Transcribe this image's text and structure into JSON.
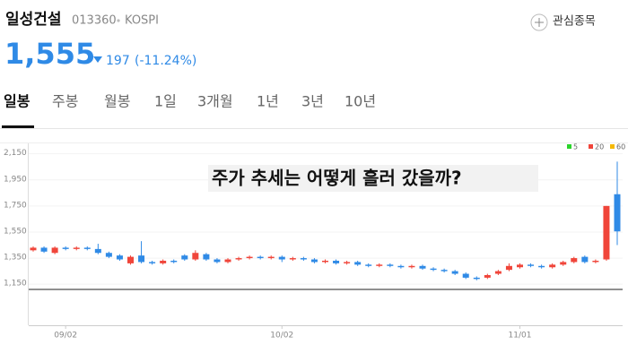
{
  "header": {
    "name": "일성건설",
    "code": "013360",
    "market": "KOSPI",
    "watch_button": "관심종목",
    "price": "1,555",
    "change": "197",
    "change_pct": "(-11.24%)"
  },
  "tabs": [
    "일봉",
    "주봉",
    "월봉",
    "1일",
    "3개월",
    "1년",
    "3년",
    "10년"
  ],
  "active_tab": 0,
  "overlay_text": "주가 추세는 어떻게 흘러 갔을까?",
  "chart_data": {
    "type": "candlestick",
    "categories": [
      null,
      null,
      null,
      "09/02",
      null,
      null,
      null,
      null,
      null,
      null,
      null,
      null,
      null,
      null,
      null,
      null,
      null,
      null,
      null,
      null,
      null,
      null,
      null,
      "10/02",
      null,
      null,
      null,
      null,
      null,
      null,
      null,
      null,
      null,
      null,
      null,
      null,
      null,
      null,
      null,
      null,
      null,
      null,
      null,
      null,
      null,
      "11/01",
      null,
      null,
      null,
      null,
      null,
      null,
      null,
      null,
      null
    ],
    "open": [
      1410,
      1430,
      1390,
      1430,
      1420,
      1430,
      1420,
      1390,
      1370,
      1310,
      1370,
      1320,
      1310,
      1330,
      1370,
      1340,
      1380,
      1340,
      1320,
      1340,
      1350,
      1360,
      1350,
      1360,
      1340,
      1350,
      1340,
      1320,
      1330,
      1310,
      1320,
      1300,
      1290,
      1300,
      1290,
      1280,
      1290,
      1270,
      1260,
      1250,
      1230,
      1200,
      1200,
      1230,
      1260,
      1280,
      1300,
      1290,
      1280,
      1300,
      1320,
      1360,
      1320,
      1340,
      1840
    ],
    "close": [
      1430,
      1400,
      1430,
      1420,
      1430,
      1420,
      1390,
      1360,
      1340,
      1360,
      1320,
      1310,
      1330,
      1320,
      1340,
      1390,
      1340,
      1320,
      1340,
      1350,
      1360,
      1350,
      1360,
      1340,
      1350,
      1340,
      1320,
      1330,
      1310,
      1320,
      1300,
      1290,
      1300,
      1290,
      1280,
      1290,
      1270,
      1260,
      1250,
      1230,
      1200,
      1190,
      1220,
      1250,
      1290,
      1300,
      1290,
      1280,
      1300,
      1320,
      1350,
      1320,
      1330,
      1750,
      1555
    ],
    "high": [
      1440,
      1440,
      1440,
      1440,
      1440,
      1440,
      1460,
      1400,
      1380,
      1370,
      1480,
      1330,
      1340,
      1340,
      1380,
      1410,
      1390,
      1350,
      1350,
      1360,
      1370,
      1370,
      1370,
      1370,
      1360,
      1360,
      1350,
      1340,
      1340,
      1330,
      1330,
      1310,
      1310,
      1310,
      1300,
      1300,
      1300,
      1280,
      1270,
      1260,
      1240,
      1210,
      1230,
      1260,
      1310,
      1310,
      1310,
      1300,
      1310,
      1330,
      1360,
      1370,
      1340,
      1750,
      2090
    ],
    "low": [
      1400,
      1390,
      1380,
      1410,
      1410,
      1410,
      1380,
      1350,
      1330,
      1300,
      1310,
      1300,
      1300,
      1310,
      1330,
      1330,
      1330,
      1310,
      1310,
      1330,
      1340,
      1340,
      1340,
      1320,
      1330,
      1330,
      1310,
      1310,
      1300,
      1300,
      1290,
      1280,
      1280,
      1280,
      1270,
      1270,
      1260,
      1250,
      1240,
      1220,
      1190,
      1180,
      1190,
      1220,
      1250,
      1270,
      1280,
      1270,
      1270,
      1290,
      1310,
      1310,
      1310,
      1330,
      1450
    ],
    "up_color": "#f0453a",
    "down_color": "#2f8ae6",
    "ylim": [
      1110,
      2230
    ],
    "yticks": [
      {
        "value": 1150,
        "label": "1,150"
      },
      {
        "value": 1350,
        "label": "1,350"
      },
      {
        "value": 1550,
        "label": "1,550"
      },
      {
        "value": 1750,
        "label": "1,750"
      },
      {
        "value": 1950,
        "label": "1,950"
      },
      {
        "value": 2150,
        "label": "2,150"
      }
    ],
    "moving_averages": [
      {
        "name": "5",
        "color": "#2bd42b"
      },
      {
        "name": "20",
        "color": "#f0453a"
      },
      {
        "name": "60",
        "color": "#f5b800"
      }
    ]
  }
}
